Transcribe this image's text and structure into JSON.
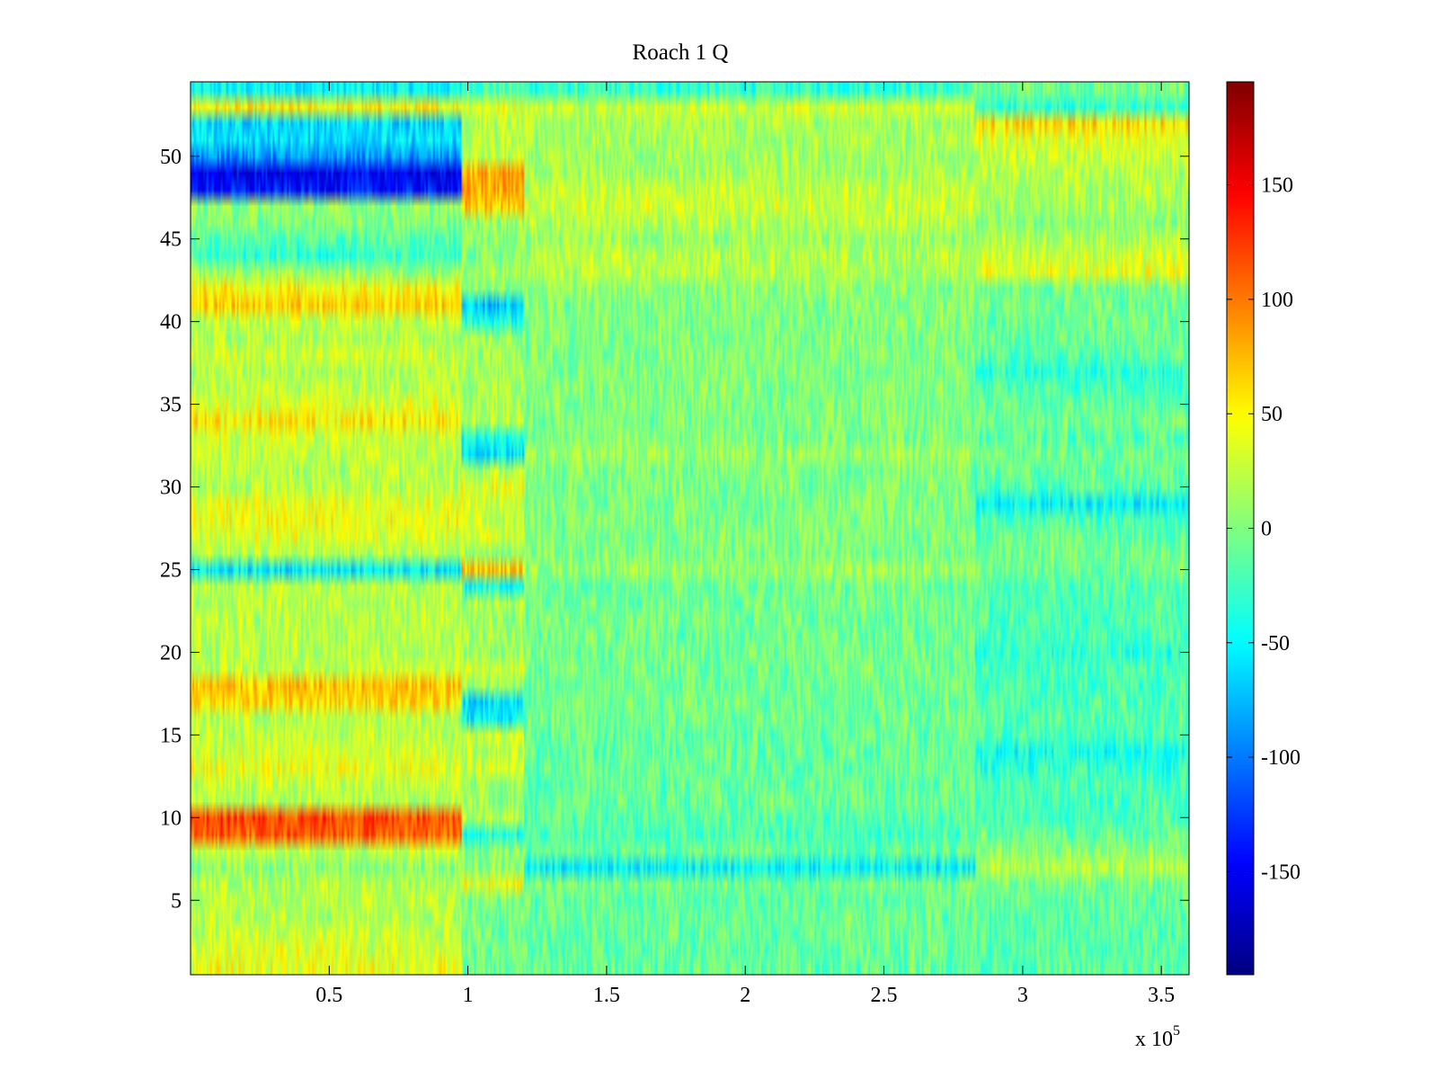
{
  "chart_data": {
    "type": "heatmap",
    "title": "Roach 1 Q",
    "xlabel": "",
    "ylabel": "",
    "x_multiplier_label": {
      "base": "x 10",
      "exponent": "5"
    },
    "xlim": [
      0,
      3.6
    ],
    "ylim": [
      0.5,
      54.5
    ],
    "x_tick_values": [
      0.5,
      1,
      1.5,
      2,
      2.5,
      3,
      3.5
    ],
    "x_tick_labels": [
      "0.5",
      "1",
      "1.5",
      "2",
      "2.5",
      "3",
      "3.5"
    ],
    "y_tick_values": [
      5,
      10,
      15,
      20,
      25,
      30,
      35,
      40,
      45,
      50
    ],
    "y_tick_labels": [
      "5",
      "10",
      "15",
      "20",
      "25",
      "30",
      "35",
      "40",
      "45",
      "50"
    ],
    "rows": 54,
    "x_segments": [
      0,
      0.98,
      1.2,
      2.83,
      3.6
    ],
    "row_segment_means": {
      "1": [
        40,
        -10,
        -10,
        -15
      ],
      "2": [
        35,
        -5,
        -10,
        -15
      ],
      "3": [
        25,
        -5,
        -10,
        -15
      ],
      "4": [
        20,
        -5,
        -10,
        -15
      ],
      "5": [
        25,
        0,
        -10,
        -10
      ],
      "6": [
        20,
        40,
        -5,
        -5
      ],
      "7": [
        5,
        5,
        -50,
        20
      ],
      "8": [
        25,
        0,
        -10,
        5
      ],
      "9": [
        110,
        -40,
        -20,
        -10
      ],
      "10": [
        120,
        20,
        -15,
        -20
      ],
      "11": [
        20,
        10,
        -10,
        -20
      ],
      "12": [
        25,
        10,
        -10,
        -20
      ],
      "13": [
        40,
        30,
        -10,
        -30
      ],
      "14": [
        30,
        25,
        -10,
        -40
      ],
      "15": [
        25,
        30,
        -10,
        -20
      ],
      "16": [
        20,
        -50,
        -5,
        -15
      ],
      "17": [
        60,
        -60,
        -5,
        -20
      ],
      "18": [
        70,
        10,
        -5,
        -20
      ],
      "19": [
        25,
        30,
        -5,
        -20
      ],
      "20": [
        20,
        10,
        -5,
        -30
      ],
      "21": [
        20,
        15,
        -5,
        -20
      ],
      "22": [
        20,
        10,
        -5,
        -20
      ],
      "23": [
        20,
        15,
        -5,
        -20
      ],
      "24": [
        20,
        -40,
        -5,
        -15
      ],
      "25": [
        -55,
        70,
        10,
        -5
      ],
      "26": [
        20,
        10,
        0,
        -5
      ],
      "27": [
        35,
        30,
        0,
        -10
      ],
      "28": [
        45,
        25,
        0,
        -20
      ],
      "29": [
        40,
        30,
        0,
        -50
      ],
      "30": [
        20,
        40,
        0,
        -20
      ],
      "31": [
        20,
        20,
        0,
        -10
      ],
      "32": [
        25,
        -60,
        10,
        -5
      ],
      "33": [
        30,
        -40,
        0,
        -15
      ],
      "34": [
        55,
        20,
        0,
        -5
      ],
      "35": [
        35,
        15,
        0,
        -10
      ],
      "36": [
        25,
        15,
        0,
        -20
      ],
      "37": [
        20,
        15,
        0,
        -30
      ],
      "38": [
        30,
        15,
        0,
        -15
      ],
      "39": [
        20,
        10,
        0,
        -10
      ],
      "40": [
        25,
        -40,
        0,
        -5
      ],
      "41": [
        65,
        -75,
        0,
        -5
      ],
      "42": [
        50,
        5,
        5,
        -5
      ],
      "43": [
        10,
        10,
        20,
        40
      ],
      "44": [
        -30,
        0,
        20,
        30
      ],
      "45": [
        -15,
        5,
        10,
        20
      ],
      "46": [
        0,
        10,
        20,
        5
      ],
      "47": [
        5,
        70,
        30,
        15
      ],
      "48": [
        -140,
        80,
        25,
        20
      ],
      "49": [
        -150,
        80,
        15,
        20
      ],
      "50": [
        -90,
        20,
        10,
        25
      ],
      "51": [
        -60,
        20,
        15,
        35
      ],
      "52": [
        -60,
        20,
        15,
        60
      ],
      "53": [
        50,
        40,
        30,
        -30
      ],
      "54": [
        -50,
        -20,
        -30,
        -5
      ]
    },
    "colorbar": {
      "colormap": "jet",
      "clim": [
        -195,
        195
      ],
      "tick_values": [
        -150,
        -100,
        -50,
        0,
        50,
        100,
        150
      ],
      "tick_labels": [
        "-150",
        "-100",
        "-50",
        "0",
        "50",
        "100",
        "150"
      ]
    }
  }
}
